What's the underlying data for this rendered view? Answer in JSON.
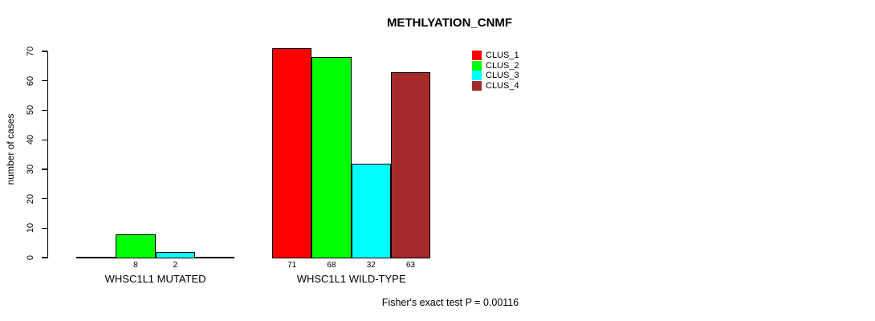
{
  "chart_data": {
    "type": "bar",
    "title": "METHLYATION_CNMF",
    "ylabel": "number of cases",
    "annotation": "Fisher's exact test P = 0.00116",
    "categories": [
      "WHSC1L1 MUTATED",
      "WHSC1L1 WILD-TYPE"
    ],
    "series": [
      {
        "name": "CLUS_1",
        "color": "#FF0000",
        "values": [
          0,
          71
        ]
      },
      {
        "name": "CLUS_2",
        "color": "#00FF00",
        "values": [
          8,
          68
        ]
      },
      {
        "name": "CLUS_3",
        "color": "#00FFFF",
        "values": [
          2,
          32
        ]
      },
      {
        "name": "CLUS_4",
        "color": "#A52A2A",
        "values": [
          0,
          63
        ]
      }
    ],
    "yticks": [
      0,
      10,
      20,
      30,
      40,
      50,
      60,
      70
    ],
    "ylim": [
      0,
      70
    ],
    "grid": false,
    "legend_position": "top-right",
    "bar_value_labels": "nonzero values shown under bars",
    "axis_color": "#000000",
    "background_color": "#ffffff"
  }
}
